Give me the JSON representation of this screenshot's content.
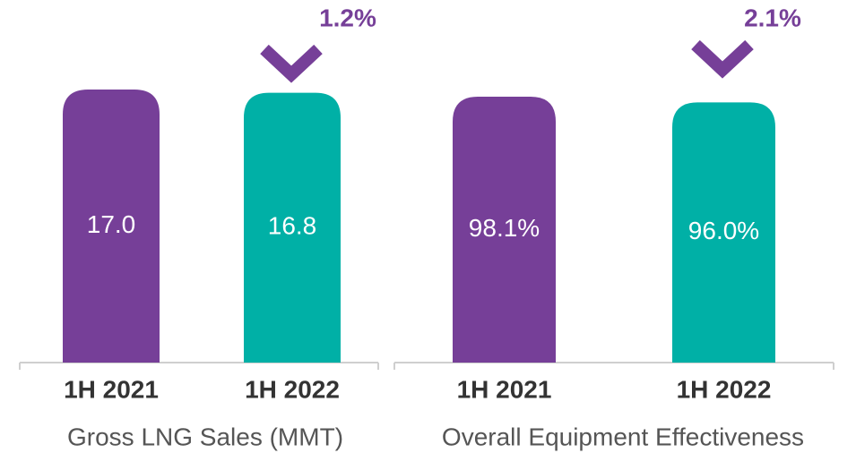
{
  "chart_data": [
    {
      "type": "bar",
      "x_label": "Gross LNG Sales (MMT)",
      "categories": [
        "1H 2021",
        "1H 2022"
      ],
      "values": [
        17.0,
        16.8
      ],
      "value_labels": [
        "17.0",
        "16.8"
      ],
      "colors": [
        "#763f98",
        "#00b0a6"
      ],
      "annotation": "1.2%",
      "annotation_color": "#763f98"
    },
    {
      "type": "bar",
      "x_label": "Overall Equipment Effectiveness",
      "categories": [
        "1H 2021",
        "1H 2022"
      ],
      "values": [
        98.1,
        96.0
      ],
      "value_labels": [
        "98.1%",
        "96.0%"
      ],
      "colors": [
        "#763f98",
        "#00b0a6"
      ],
      "annotation": "2.1%",
      "annotation_color": "#763f98"
    }
  ]
}
